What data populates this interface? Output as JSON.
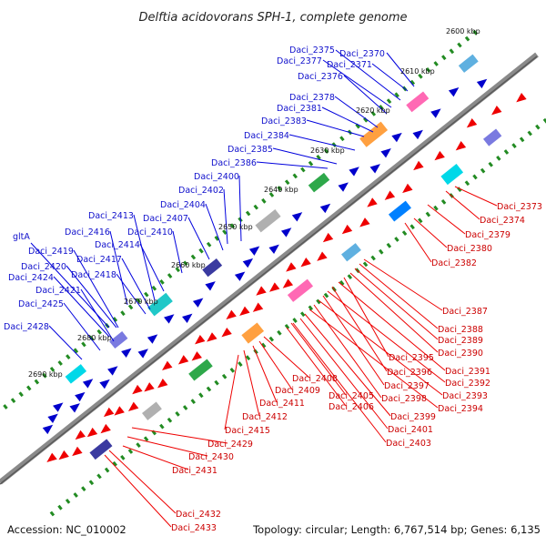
{
  "title": "Delftia acidovorans SPH-1, complete genome",
  "footer": {
    "accession": "Accession: NC_010002",
    "summary": "Topology: circular; Length: 6,767,514 bp; Genes: 6,135"
  },
  "colors": {
    "backbone": "#8a8a8a",
    "tick_dot": "#228b22",
    "forward_label": "#1010cc",
    "reverse_label": "#cc0000",
    "forward_arrow": "#0000cc",
    "reverse_arrow": "#ee0000"
  },
  "ticks": [
    "2600 kbp",
    "2610 kbp",
    "2620 kbp",
    "2630 kbp",
    "2640 kbp",
    "2650 kbp",
    "2660 kbp",
    "2670 kbp",
    "2680 kbp",
    "2690 kbp"
  ],
  "blue_labels": [
    "Daci_2370",
    "Daci_2371",
    "Daci_2375",
    "Daci_2377",
    "Daci_2376",
    "Daci_2378",
    "Daci_2381",
    "Daci_2383",
    "Daci_2384",
    "Daci_2385",
    "Daci_2386",
    "Daci_2400",
    "Daci_2402",
    "Daci_2404",
    "Daci_2407",
    "Daci_2413",
    "Daci_2410",
    "Daci_2416",
    "Daci_2414",
    "gltA",
    "Daci_2419",
    "Daci_2417",
    "Daci_2420",
    "Daci_2418",
    "Daci_2424",
    "Daci_2421",
    "Daci_2425",
    "Daci_2428"
  ],
  "red_labels": [
    "Daci_2373",
    "Daci_2374",
    "Daci_2379",
    "Daci_2380",
    "Daci_2382",
    "Daci_2387",
    "Daci_2388",
    "Daci_2389",
    "Daci_2390",
    "Daci_2395",
    "Daci_2391",
    "Daci_2396",
    "Daci_2392",
    "Daci_2397",
    "Daci_2393",
    "Daci_2398",
    "Daci_2394",
    "Daci_2399",
    "Daci_2408",
    "Daci_2409",
    "Daci_2405",
    "Daci_2406",
    "Daci_2411",
    "Daci_2401",
    "Daci_2412",
    "Daci_2403",
    "Daci_2415",
    "Daci_2429",
    "Daci_2430",
    "Daci_2431",
    "Daci_2432",
    "Daci_2433"
  ]
}
